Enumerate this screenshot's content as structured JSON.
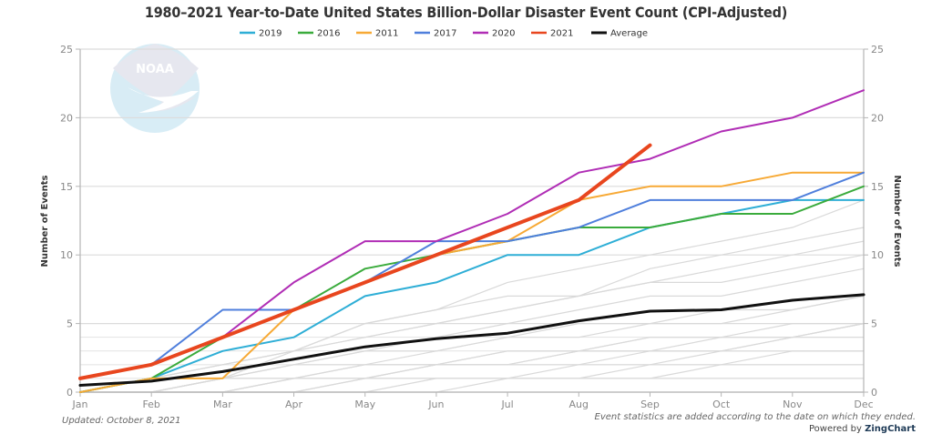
{
  "chart_data": {
    "type": "line",
    "title": "1980–2021 Year-to-Date United States Billion-Dollar Disaster Event Count (CPI-Adjusted)",
    "xlabel": "",
    "ylabel": "Number of Events",
    "ylabel_right": "Number of Events",
    "categories": [
      "Jan",
      "Feb",
      "Mar",
      "Apr",
      "May",
      "Jun",
      "Jul",
      "Aug",
      "Sep",
      "Oct",
      "Nov",
      "Dec"
    ],
    "ylim": [
      0,
      25
    ],
    "yticks": [
      0,
      5,
      10,
      15,
      20,
      25
    ],
    "grid": true,
    "legend_position": "top-center",
    "series": [
      {
        "name": "2019",
        "color": "#2eaed6",
        "values": [
          0,
          1,
          3,
          4,
          7,
          8,
          10,
          10,
          12,
          13,
          14,
          14
        ]
      },
      {
        "name": "2016",
        "color": "#3aab3c",
        "values": [
          0,
          1,
          4,
          6,
          9,
          10,
          11,
          12,
          12,
          13,
          13,
          15
        ]
      },
      {
        "name": "2011",
        "color": "#f7a935",
        "values": [
          0,
          1,
          1,
          6,
          8,
          10,
          11,
          14,
          15,
          15,
          16,
          16
        ]
      },
      {
        "name": "2017",
        "color": "#4f7fdc",
        "values": [
          1,
          2,
          6,
          6,
          8,
          11,
          11,
          12,
          14,
          14,
          14,
          16
        ]
      },
      {
        "name": "2020",
        "color": "#b02db5",
        "values": [
          1,
          2,
          4,
          8,
          11,
          11,
          13,
          16,
          17,
          19,
          20,
          22
        ]
      },
      {
        "name": "2021",
        "color": "#e8461e",
        "values": [
          1,
          2,
          4,
          6,
          8,
          10,
          12,
          14,
          18
        ]
      },
      {
        "name": "Average",
        "color": "#111111",
        "values": [
          0.5,
          0.8,
          1.5,
          2.4,
          3.3,
          3.9,
          4.3,
          5.2,
          5.9,
          6.0,
          6.7,
          7.1
        ]
      }
    ],
    "background_series_color": "#d9d9d9",
    "background_series": [
      [
        0,
        0,
        0,
        1,
        1,
        2,
        2,
        3,
        3,
        3,
        3,
        3
      ],
      [
        0,
        0,
        1,
        1,
        2,
        2,
        3,
        3,
        4,
        4,
        5,
        5
      ],
      [
        0,
        0,
        0,
        0,
        1,
        1,
        1,
        2,
        2,
        3,
        4,
        5
      ],
      [
        0,
        1,
        1,
        2,
        3,
        3,
        4,
        4,
        5,
        5,
        6,
        7
      ],
      [
        0,
        0,
        1,
        2,
        2,
        3,
        4,
        5,
        5,
        6,
        6,
        7
      ],
      [
        0,
        0,
        0,
        1,
        2,
        2,
        3,
        3,
        4,
        4,
        4,
        5
      ],
      [
        0,
        0,
        1,
        2,
        3,
        4,
        5,
        6,
        7,
        7,
        8,
        9
      ],
      [
        0,
        1,
        2,
        3,
        4,
        5,
        6,
        7,
        8,
        8,
        9,
        10
      ],
      [
        0,
        1,
        2,
        3,
        5,
        6,
        7,
        7,
        8,
        9,
        10,
        11
      ],
      [
        0,
        0,
        1,
        3,
        4,
        5,
        6,
        7,
        9,
        10,
        11,
        12
      ],
      [
        0,
        1,
        2,
        3,
        5,
        6,
        8,
        9,
        10,
        11,
        12,
        14
      ],
      [
        0,
        0,
        0,
        0,
        1,
        1,
        1,
        1,
        2,
        2,
        3,
        3
      ],
      [
        0,
        0,
        0,
        1,
        1,
        2,
        2,
        2,
        3,
        3,
        4,
        4
      ],
      [
        0,
        0,
        1,
        1,
        1,
        2,
        2,
        3,
        3,
        4,
        4,
        5
      ],
      [
        0,
        0,
        0,
        0,
        0,
        1,
        1,
        1,
        1,
        2,
        2,
        2
      ],
      [
        0,
        0,
        0,
        0,
        0,
        0,
        1,
        1,
        1,
        1,
        1,
        1
      ]
    ]
  },
  "logo": {
    "text": "NOAA"
  },
  "footer": {
    "updated": "Updated: October 8, 2021",
    "note": "Event statistics are added according to the date on which they ended.",
    "powered_prefix": "Powered by ",
    "powered_brand": "ZingChart"
  }
}
